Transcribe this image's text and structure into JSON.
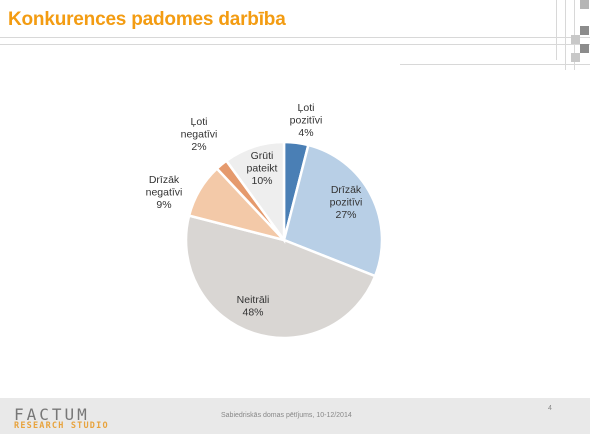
{
  "header": {
    "title": "Konkurences padomes darbība"
  },
  "footer": {
    "logo_top": "FACTUM",
    "logo_bottom": "RESEARCH STUDIO",
    "caption": "Sabiedriskās domas pētījums, 10-12/2014",
    "page_number": "4"
  },
  "colors": {
    "title": "#f39c12",
    "decor_dark": "#8c8c8c",
    "decor_light": "#c8c8c8"
  },
  "chart_data": {
    "type": "pie",
    "title": "",
    "slices": [
      {
        "lines": [
          "Ļoti",
          "pozitīvi",
          "4%"
        ],
        "value": 4,
        "color": "#4a7fb5"
      },
      {
        "lines": [
          "Drīzāk",
          "pozitīvi",
          "27%"
        ],
        "value": 27,
        "color": "#b8cfe6"
      },
      {
        "lines": [
          "Neitrāli",
          "48%"
        ],
        "value": 48,
        "color": "#d9d6d3"
      },
      {
        "lines": [
          "Drīzāk",
          "negatīvi",
          "9%"
        ],
        "value": 9,
        "color": "#f3c9a8"
      },
      {
        "lines": [
          "Ļoti",
          "negatīvi",
          "2%"
        ],
        "value": 2,
        "color": "#e59a6d"
      },
      {
        "lines": [
          "Grūti",
          "pateikt",
          "10%"
        ],
        "value": 10,
        "color": "#eeeeee"
      }
    ]
  }
}
